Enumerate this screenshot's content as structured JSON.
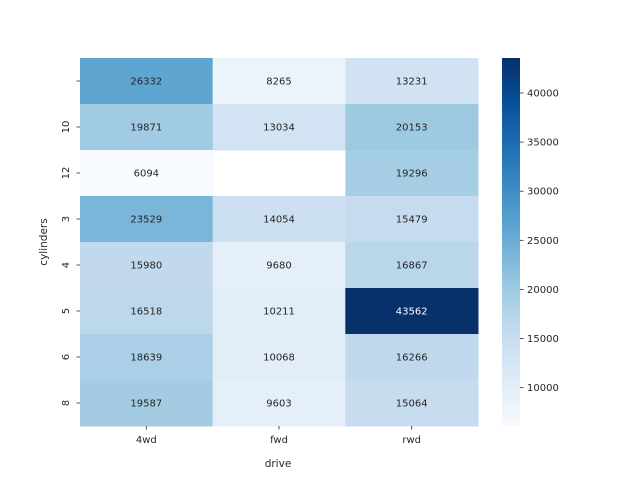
{
  "chart_data": {
    "type": "heatmap",
    "title": "",
    "xlabel": "drive",
    "ylabel": "cylinders",
    "x_categories": [
      "4wd",
      "fwd",
      "rwd"
    ],
    "y_categories": [
      "",
      "10",
      "12",
      "3",
      "4",
      "5",
      "6",
      "8"
    ],
    "values": [
      [
        26332,
        8265,
        13231
      ],
      [
        19871,
        13034,
        20153
      ],
      [
        6094,
        null,
        19296
      ],
      [
        23529,
        14054,
        15479
      ],
      [
        15980,
        9680,
        16867
      ],
      [
        16518,
        10211,
        43562
      ],
      [
        18639,
        10068,
        16266
      ],
      [
        19587,
        9603,
        15064
      ]
    ],
    "color_range": [
      6094,
      43562
    ],
    "colormap": "Blues",
    "colorbar_ticks": [
      10000,
      15000,
      20000,
      25000,
      30000,
      35000,
      40000
    ],
    "colorbar_tick_labels": [
      "10000",
      "15000",
      "20000",
      "25000",
      "30000",
      "35000",
      "40000"
    ],
    "grid": false,
    "annotations": true
  }
}
